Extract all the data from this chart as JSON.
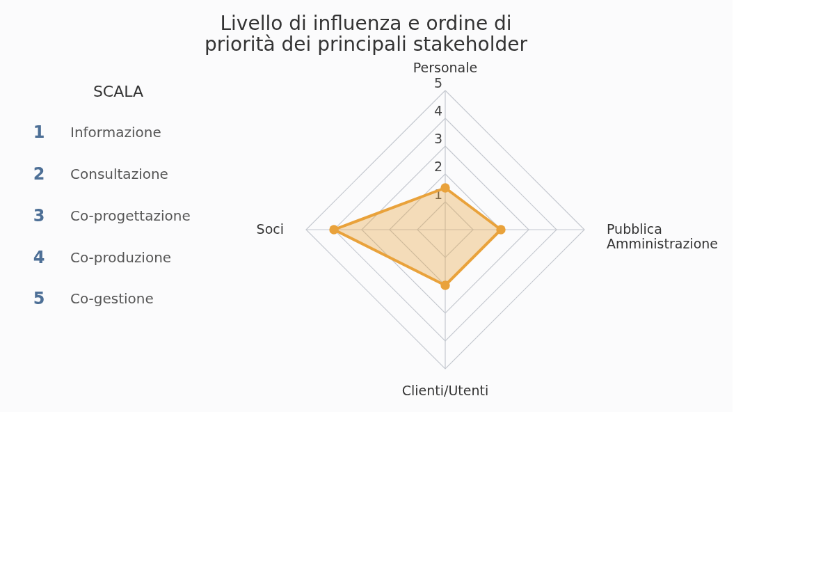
{
  "chart_data": {
    "type": "radar",
    "title": "Livello di influenza e ordine di priorità dei principali stakeholder",
    "categories": [
      "Personale",
      "Pubblica Amministrazione",
      "Clienti/Utenti",
      "Soci"
    ],
    "series": [
      {
        "color": "#e9a23b",
        "values": [
          1.5,
          2,
          2,
          4
        ]
      }
    ],
    "ylim": [
      0,
      5
    ],
    "yticks": [
      1,
      2,
      3,
      4,
      5
    ],
    "grid": true,
    "marker": "circle",
    "annotations": [
      "SCALA",
      "1 Informazione",
      "2 Consultazione",
      "3 Co-progettazione",
      "4 Co-produzione",
      "5 Co-gestione"
    ]
  }
}
